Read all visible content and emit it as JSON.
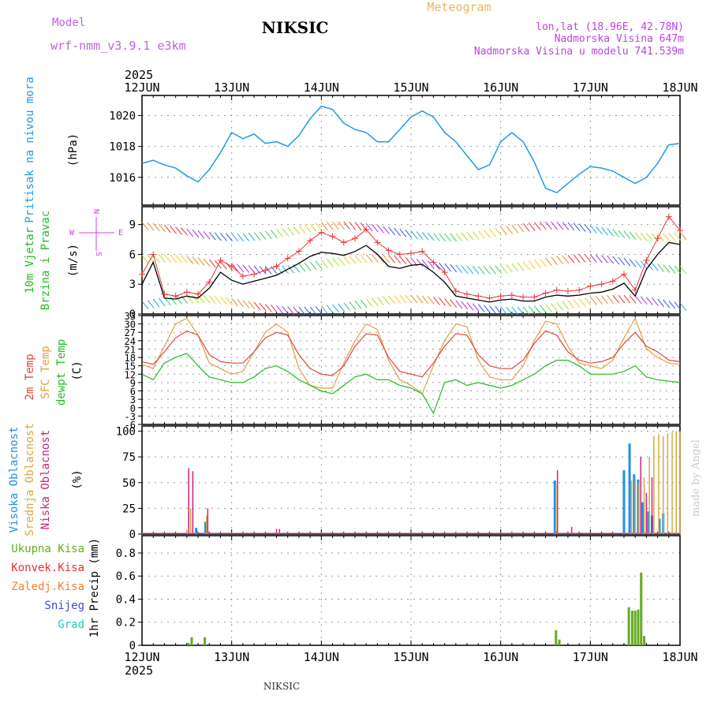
{
  "header": {
    "model_label": "Model",
    "model_name": "wrf-nmm_v3.9.1 e3km",
    "station": "NIKSIC",
    "product": "Meteogram",
    "coords": "lon,lat (18.96E, 42.78N)",
    "elevation": "Nadmorska Visina 647m",
    "model_elevation": "Nadmorska Visina u modelu 741.539m",
    "year": "2025",
    "footer_station": "NIKSIC",
    "credit": "made by Angel"
  },
  "colors": {
    "pressure": "#1e9be6",
    "windspeed": "#000000",
    "gust": "#e8373a",
    "temp2m": "#e0463c",
    "sfctemp": "#e0a040",
    "dewpoint": "#22bb22",
    "cloud_high": "#1e90e6",
    "cloud_mid": "#d8a840",
    "cloud_low": "#cc2277",
    "precip_total": "#66aa22",
    "precip_conv": "#e83030",
    "precip_frz": "#f08030",
    "snow": "#4444dd",
    "hail": "#22ccbb"
  },
  "chart_data": [
    {
      "type": "line",
      "panel": "pressure",
      "ylabel_left": "Pritisak na nivou mora",
      "ylabel_unit": "(hPa)",
      "ylim": [
        1014.2,
        1021.3
      ],
      "yticks": [
        1016,
        1018,
        1020
      ],
      "xlim": [
        0,
        144
      ],
      "xticks": [
        "12JUN",
        "13JUN",
        "14JUN",
        "15JUN",
        "16JUN",
        "17JUN",
        "18JUN"
      ],
      "x": [
        0,
        3,
        6,
        9,
        12,
        15,
        18,
        21,
        24,
        27,
        30,
        33,
        36,
        39,
        42,
        45,
        48,
        51,
        54,
        57,
        60,
        63,
        66,
        69,
        72,
        75,
        78,
        81,
        84,
        87,
        90,
        93,
        96,
        99,
        102,
        105,
        108,
        111,
        114,
        117,
        120,
        123,
        126,
        129,
        132,
        135,
        138,
        141,
        144
      ],
      "series": [
        {
          "values": [
            1016.9,
            1017.1,
            1016.8,
            1016.6,
            1016.1,
            1015.7,
            1016.5,
            1017.6,
            1018.9,
            1018.5,
            1018.8,
            1018.2,
            1018.3,
            1018.0,
            1018.7,
            1019.8,
            1020.6,
            1020.4,
            1019.5,
            1019.1,
            1018.9,
            1018.3,
            1018.3,
            1019.1,
            1019.9,
            1020.3,
            1019.9,
            1018.9,
            1018.3,
            1017.4,
            1016.5,
            1016.8,
            1018.3,
            1018.9,
            1018.3,
            1017.0,
            1015.3,
            1015.0,
            1015.6,
            1016.2,
            1016.7,
            1016.6,
            1016.4,
            1016.0,
            1015.6,
            1016.0,
            1016.9,
            1018.1,
            1018.2
          ]
        }
      ]
    },
    {
      "type": "line",
      "panel": "wind",
      "ylabel_left": [
        "10m Vjetar",
        "Brzina i Pravac"
      ],
      "ylabel_unit": "(m/s)",
      "compass": {
        "n": "N",
        "w": "W",
        "e": "E",
        "s": "S"
      },
      "ylim": [
        0,
        10.8
      ],
      "yticks": [
        0,
        3,
        6,
        9
      ],
      "x": [
        0,
        3,
        6,
        9,
        12,
        15,
        18,
        21,
        24,
        27,
        30,
        33,
        36,
        39,
        42,
        45,
        48,
        51,
        54,
        57,
        60,
        63,
        66,
        69,
        72,
        75,
        78,
        81,
        84,
        87,
        90,
        93,
        96,
        99,
        102,
        105,
        108,
        111,
        114,
        117,
        120,
        123,
        126,
        129,
        132,
        135,
        138,
        141,
        144
      ],
      "series": [
        {
          "name": "speed",
          "values": [
            3.0,
            5.2,
            1.6,
            1.5,
            1.8,
            1.6,
            2.6,
            4.2,
            3.4,
            3.0,
            3.3,
            3.6,
            3.9,
            4.5,
            5.1,
            5.8,
            6.2,
            6.1,
            5.9,
            6.3,
            6.9,
            6.0,
            4.8,
            4.6,
            4.9,
            5.0,
            4.2,
            3.2,
            1.8,
            1.6,
            1.4,
            1.2,
            1.4,
            1.5,
            1.3,
            1.3,
            1.7,
            1.9,
            1.8,
            1.9,
            2.1,
            2.2,
            2.5,
            3.1,
            1.8,
            4.5,
            6.0,
            7.2,
            7.0
          ]
        },
        {
          "name": "gust",
          "values": [
            4.0,
            6.0,
            2.0,
            1.8,
            2.2,
            2.0,
            3.2,
            5.4,
            4.8,
            3.8,
            4.0,
            4.4,
            4.8,
            5.6,
            6.3,
            7.4,
            8.2,
            7.8,
            7.2,
            7.6,
            8.5,
            7.2,
            6.4,
            6.0,
            6.1,
            6.3,
            5.2,
            4.2,
            2.3,
            2.0,
            1.8,
            1.6,
            1.8,
            1.9,
            1.7,
            1.7,
            2.1,
            2.4,
            2.3,
            2.4,
            2.8,
            3.0,
            3.3,
            4.0,
            2.4,
            5.4,
            7.6,
            9.8,
            8.4
          ]
        }
      ]
    },
    {
      "type": "line",
      "panel": "temperature",
      "ylabel_left": [
        "2m Temp",
        "SFC Temp",
        "dewpt Temp"
      ],
      "ylabel_unit": "(C)",
      "ylim": [
        -6,
        33
      ],
      "yticks": [
        -6,
        -3,
        0,
        3,
        6,
        9,
        12,
        15,
        18,
        21,
        24,
        27,
        30,
        33
      ],
      "x": [
        0,
        3,
        6,
        9,
        12,
        15,
        18,
        21,
        24,
        27,
        30,
        33,
        36,
        39,
        42,
        45,
        48,
        51,
        54,
        57,
        60,
        63,
        66,
        69,
        72,
        75,
        78,
        81,
        84,
        87,
        90,
        93,
        96,
        99,
        102,
        105,
        108,
        111,
        114,
        117,
        120,
        123,
        126,
        129,
        132,
        135,
        138,
        141,
        144
      ],
      "series": [
        {
          "name": "2m Temp",
          "values": [
            16.5,
            15.5,
            20,
            25,
            27.5,
            26,
            19,
            16.5,
            16,
            16,
            20,
            25,
            27,
            26,
            19,
            14,
            12,
            11.5,
            15,
            22,
            26.5,
            26,
            18,
            13,
            12,
            11,
            16,
            22,
            26.5,
            26,
            19,
            15,
            14,
            14,
            17,
            23,
            27.5,
            26,
            20,
            17,
            16,
            16.5,
            18,
            23,
            27,
            22,
            20,
            17,
            16.5
          ]
        },
        {
          "name": "SFC Temp",
          "values": [
            15.5,
            14,
            22,
            30,
            32,
            26,
            16,
            14,
            12,
            13,
            20,
            27,
            30,
            27,
            14,
            8,
            7,
            7,
            16,
            24,
            30,
            28,
            17,
            10,
            8,
            5,
            15,
            24,
            30,
            29,
            17,
            11,
            10,
            10,
            15,
            24,
            31,
            30,
            22,
            16,
            15,
            14,
            17,
            25,
            32,
            21,
            18,
            16,
            15.5
          ]
        },
        {
          "name": "dewpt Temp",
          "values": [
            12,
            10,
            16,
            18,
            19.5,
            15,
            11,
            10,
            9,
            9,
            11,
            14,
            15,
            13,
            10,
            8,
            6,
            5,
            8,
            11,
            12,
            10,
            10,
            8,
            7,
            5,
            -2,
            9,
            10,
            8,
            9,
            8,
            7,
            8,
            10,
            12,
            15,
            17,
            17,
            15,
            12,
            12,
            12,
            13,
            15,
            11,
            10,
            9.5,
            9
          ]
        }
      ]
    },
    {
      "type": "bar",
      "panel": "cloud",
      "ylabel_left": [
        "Visoka Oblacnost",
        "Srednja Oblacnost",
        "Niska Oblacnost"
      ],
      "ylabel_unit": "(%)",
      "ylim": [
        0,
        105
      ],
      "yticks": [
        0,
        25,
        50,
        75,
        100
      ],
      "series": [
        {
          "name": "Visoka Oblacnost",
          "points": [
            [
              14.5,
              6
            ],
            [
              17,
              12
            ],
            [
              110.5,
              52
            ],
            [
              129,
              62
            ],
            [
              130.5,
              88
            ],
            [
              131.7,
              58
            ],
            [
              132.8,
              53
            ],
            [
              134,
              31
            ],
            [
              135.5,
              22
            ],
            [
              136.5,
              18
            ],
            [
              137.5,
              0
            ],
            [
              138.5,
              15
            ],
            [
              139.5,
              20
            ]
          ]
        },
        {
          "name": "Srednja Oblacnost",
          "points": [
            [
              12,
              4
            ],
            [
              13,
              25
            ],
            [
              17.3,
              18
            ],
            [
              110.8,
              48
            ],
            [
              131,
              52
            ],
            [
              132,
              55
            ],
            [
              133,
              50
            ],
            [
              134.4,
              55
            ],
            [
              135.8,
              75
            ],
            [
              137,
              95
            ],
            [
              138.3,
              97
            ],
            [
              139.5,
              95
            ],
            [
              140.7,
              98
            ],
            [
              141.9,
              99
            ],
            [
              143,
              100
            ],
            [
              144,
              100
            ]
          ]
        },
        {
          "name": "Niska Oblacnost",
          "points": [
            [
              12.5,
              64
            ],
            [
              13.6,
              61
            ],
            [
              17.6,
              25
            ],
            [
              36,
              5
            ],
            [
              36.8,
              5
            ],
            [
              111.2,
              62
            ],
            [
              115,
              7
            ],
            [
              133.5,
              75
            ],
            [
              135,
              40
            ],
            [
              136.5,
              55
            ]
          ]
        }
      ]
    },
    {
      "type": "bar",
      "panel": "precip",
      "ylabel_left": [
        "Ukupna Kisa",
        "Konvek.Kisa",
        "Zaledj.Kisa",
        "Snijeg",
        "Grad"
      ],
      "ylabel_unit": "1hr Precip (mm)",
      "ylim": [
        0,
        0.95
      ],
      "yticks": [
        0,
        0.2,
        0.4,
        0.6,
        0.8
      ],
      "xticks_bottom": [
        "12JUN",
        "13JUN",
        "14JUN",
        "15JUN",
        "16JUN",
        "17JUN",
        "18JUN"
      ],
      "series": [
        {
          "name": "Ukupna Kisa",
          "points": [
            [
              12.4,
              0.02
            ],
            [
              13.3,
              0.07
            ],
            [
              16.8,
              0.07
            ],
            [
              110.8,
              0.13
            ],
            [
              111.7,
              0.05
            ],
            [
              130.3,
              0.33
            ],
            [
              131.2,
              0.3
            ],
            [
              132,
              0.3
            ],
            [
              132.8,
              0.31
            ],
            [
              133.6,
              0.63
            ],
            [
              134.4,
              0.08
            ]
          ]
        }
      ]
    }
  ]
}
